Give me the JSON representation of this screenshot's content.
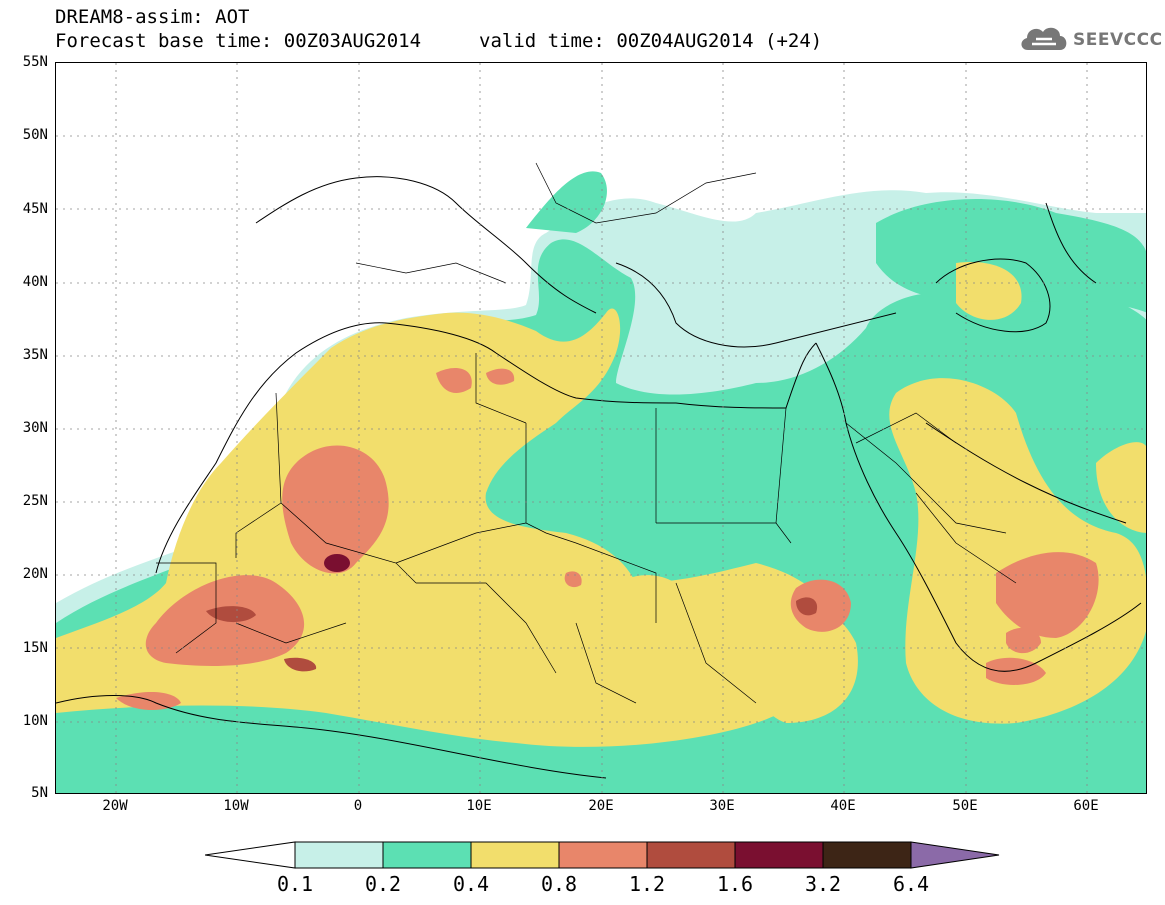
{
  "header": {
    "title_line1": "DREAM8-assim: AOT",
    "base_time": "Forecast base time: 00Z03AUG2014",
    "valid_time": "valid time: 00Z04AUG2014 (+24)"
  },
  "logo": {
    "text": "SEEVCCC",
    "icon": "cloud-icon"
  },
  "axes": {
    "lat_labels": [
      "55N",
      "50N",
      "45N",
      "40N",
      "35N",
      "30N",
      "25N",
      "20N",
      "15N",
      "10N",
      "5N"
    ],
    "lon_labels": [
      "20W",
      "10W",
      "0",
      "10E",
      "20E",
      "30E",
      "40E",
      "50E",
      "60E"
    ]
  },
  "legend": {
    "labels": [
      "0.1",
      "0.2",
      "0.4",
      "0.8",
      "1.2",
      "1.6",
      "3.2",
      "6.4"
    ],
    "colors": [
      "#ffffff",
      "#c7f0e8",
      "#5ce0b3",
      "#f2de6c",
      "#e8866a",
      "#b04c3e",
      "#7a0f30",
      "#3d2516",
      "#8b6aa8"
    ]
  },
  "map": {
    "field": "AOT",
    "lon_range": [
      -25,
      65
    ],
    "lat_range": [
      5,
      55
    ],
    "grid": "dotted"
  }
}
